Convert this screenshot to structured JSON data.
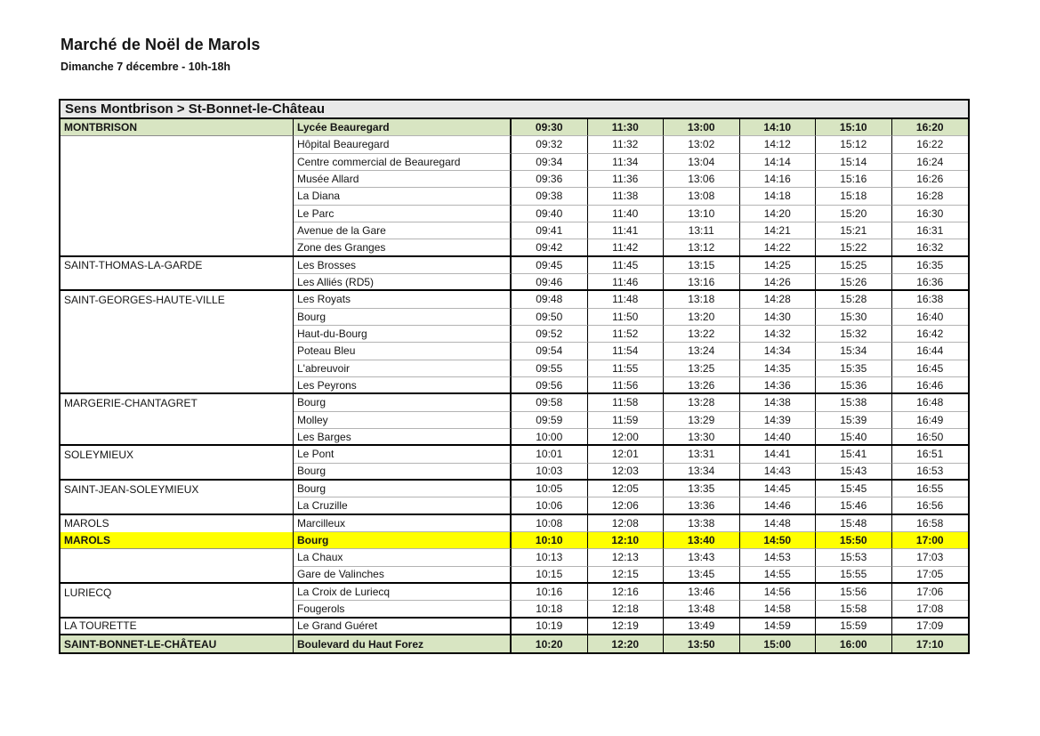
{
  "page": {
    "title": "Marché de Noël de Marols",
    "subtitle": "Dimanche 7 décembre - 10h-18h"
  },
  "colors": {
    "green_row": "#d8e5c2",
    "yellow_row": "#ffff00",
    "gray_banner": "#e9e9e9",
    "border": "#000000"
  },
  "table": {
    "direction_header": "Sens Montbrison > St-Bonnet-le-Château",
    "columns": [
      "locality",
      "stop",
      "time1",
      "time2",
      "time3",
      "time4",
      "time5",
      "time6"
    ],
    "rows": [
      {
        "locality": "MONTBRISON",
        "stop": "Lycée Beauregard",
        "times": [
          "09:30",
          "11:30",
          "13:00",
          "14:10",
          "15:10",
          "16:20"
        ],
        "style": "green",
        "group_end": false
      },
      {
        "locality": "",
        "stop": "Hôpital Beauregard",
        "times": [
          "09:32",
          "11:32",
          "13:02",
          "14:12",
          "15:12",
          "16:22"
        ],
        "style": "normal",
        "group_end": false
      },
      {
        "locality": "",
        "stop": "Centre commercial de Beauregard",
        "times": [
          "09:34",
          "11:34",
          "13:04",
          "14:14",
          "15:14",
          "16:24"
        ],
        "style": "normal",
        "group_end": false
      },
      {
        "locality": "",
        "stop": "Musée Allard",
        "times": [
          "09:36",
          "11:36",
          "13:06",
          "14:16",
          "15:16",
          "16:26"
        ],
        "style": "normal",
        "group_end": false
      },
      {
        "locality": "",
        "stop": "La Diana",
        "times": [
          "09:38",
          "11:38",
          "13:08",
          "14:18",
          "15:18",
          "16:28"
        ],
        "style": "normal",
        "group_end": false
      },
      {
        "locality": "",
        "stop": "Le Parc",
        "times": [
          "09:40",
          "11:40",
          "13:10",
          "14:20",
          "15:20",
          "16:30"
        ],
        "style": "normal",
        "group_end": false
      },
      {
        "locality": "",
        "stop": "Avenue de la Gare",
        "times": [
          "09:41",
          "11:41",
          "13:11",
          "14:21",
          "15:21",
          "16:31"
        ],
        "style": "normal",
        "group_end": false
      },
      {
        "locality": "",
        "stop": "Zone des Granges",
        "times": [
          "09:42",
          "11:42",
          "13:12",
          "14:22",
          "15:22",
          "16:32"
        ],
        "style": "normal",
        "group_end": true
      },
      {
        "locality": "SAINT-THOMAS-LA-GARDE",
        "stop": "Les Brosses",
        "times": [
          "09:45",
          "11:45",
          "13:15",
          "14:25",
          "15:25",
          "16:35"
        ],
        "style": "normal",
        "group_end": false
      },
      {
        "locality": "",
        "stop": "Les Alliés (RD5)",
        "times": [
          "09:46",
          "11:46",
          "13:16",
          "14:26",
          "15:26",
          "16:36"
        ],
        "style": "normal",
        "group_end": true
      },
      {
        "locality": "SAINT-GEORGES-HAUTE-VILLE",
        "stop": "Les Royats",
        "times": [
          "09:48",
          "11:48",
          "13:18",
          "14:28",
          "15:28",
          "16:38"
        ],
        "style": "normal",
        "group_end": false
      },
      {
        "locality": "",
        "stop": "Bourg",
        "times": [
          "09:50",
          "11:50",
          "13:20",
          "14:30",
          "15:30",
          "16:40"
        ],
        "style": "normal",
        "group_end": false
      },
      {
        "locality": "",
        "stop": "Haut-du-Bourg",
        "times": [
          "09:52",
          "11:52",
          "13:22",
          "14:32",
          "15:32",
          "16:42"
        ],
        "style": "normal",
        "group_end": false
      },
      {
        "locality": "",
        "stop": "Poteau Bleu",
        "times": [
          "09:54",
          "11:54",
          "13:24",
          "14:34",
          "15:34",
          "16:44"
        ],
        "style": "normal",
        "group_end": false
      },
      {
        "locality": "",
        "stop": "L'abreuvoir",
        "times": [
          "09:55",
          "11:55",
          "13:25",
          "14:35",
          "15:35",
          "16:45"
        ],
        "style": "normal",
        "group_end": false
      },
      {
        "locality": "",
        "stop": "Les Peyrons",
        "times": [
          "09:56",
          "11:56",
          "13:26",
          "14:36",
          "15:36",
          "16:46"
        ],
        "style": "normal",
        "group_end": true
      },
      {
        "locality": "MARGERIE-CHANTAGRET",
        "stop": "Bourg",
        "times": [
          "09:58",
          "11:58",
          "13:28",
          "14:38",
          "15:38",
          "16:48"
        ],
        "style": "normal",
        "group_end": false
      },
      {
        "locality": "",
        "stop": "Molley",
        "times": [
          "09:59",
          "11:59",
          "13:29",
          "14:39",
          "15:39",
          "16:49"
        ],
        "style": "normal",
        "group_end": false
      },
      {
        "locality": "",
        "stop": "Les Barges",
        "times": [
          "10:00",
          "12:00",
          "13:30",
          "14:40",
          "15:40",
          "16:50"
        ],
        "style": "normal",
        "group_end": true
      },
      {
        "locality": "SOLEYMIEUX",
        "stop": "Le Pont",
        "times": [
          "10:01",
          "12:01",
          "13:31",
          "14:41",
          "15:41",
          "16:51"
        ],
        "style": "normal",
        "group_end": false
      },
      {
        "locality": "",
        "stop": "Bourg",
        "times": [
          "10:03",
          "12:03",
          "13:34",
          "14:43",
          "15:43",
          "16:53"
        ],
        "style": "normal",
        "group_end": true
      },
      {
        "locality": "SAINT-JEAN-SOLEYMIEUX",
        "stop": "Bourg",
        "times": [
          "10:05",
          "12:05",
          "13:35",
          "14:45",
          "15:45",
          "16:55"
        ],
        "style": "normal",
        "group_end": false
      },
      {
        "locality": "",
        "stop": "La Cruzille",
        "times": [
          "10:06",
          "12:06",
          "13:36",
          "14:46",
          "15:46",
          "16:56"
        ],
        "style": "normal",
        "group_end": true
      },
      {
        "locality": "MAROLS",
        "stop": "Marcilleux",
        "times": [
          "10:08",
          "12:08",
          "13:38",
          "14:48",
          "15:48",
          "16:58"
        ],
        "style": "normal",
        "group_end": false
      },
      {
        "locality": "MAROLS",
        "stop": "Bourg",
        "times": [
          "10:10",
          "12:10",
          "13:40",
          "14:50",
          "15:50",
          "17:00"
        ],
        "style": "yellow",
        "group_end": false
      },
      {
        "locality": "",
        "stop": "La Chaux",
        "times": [
          "10:13",
          "12:13",
          "13:43",
          "14:53",
          "15:53",
          "17:03"
        ],
        "style": "normal",
        "group_end": false
      },
      {
        "locality": "",
        "stop": "Gare de Valinches",
        "times": [
          "10:15",
          "12:15",
          "13:45",
          "14:55",
          "15:55",
          "17:05"
        ],
        "style": "normal",
        "group_end": true
      },
      {
        "locality": "LURIECQ",
        "stop": "La Croix de Luriecq",
        "times": [
          "10:16",
          "12:16",
          "13:46",
          "14:56",
          "15:56",
          "17:06"
        ],
        "style": "normal",
        "group_end": false
      },
      {
        "locality": "",
        "stop": "Fougerols",
        "times": [
          "10:18",
          "12:18",
          "13:48",
          "14:58",
          "15:58",
          "17:08"
        ],
        "style": "normal",
        "group_end": true
      },
      {
        "locality": "LA TOURETTE",
        "stop": "Le Grand Guéret",
        "times": [
          "10:19",
          "12:19",
          "13:49",
          "14:59",
          "15:59",
          "17:09"
        ],
        "style": "normal",
        "group_end": true
      },
      {
        "locality": "SAINT-BONNET-LE-CHÂTEAU",
        "stop": "Boulevard du Haut Forez",
        "times": [
          "10:20",
          "12:20",
          "13:50",
          "15:00",
          "16:00",
          "17:10"
        ],
        "style": "green",
        "group_end": false
      }
    ]
  }
}
